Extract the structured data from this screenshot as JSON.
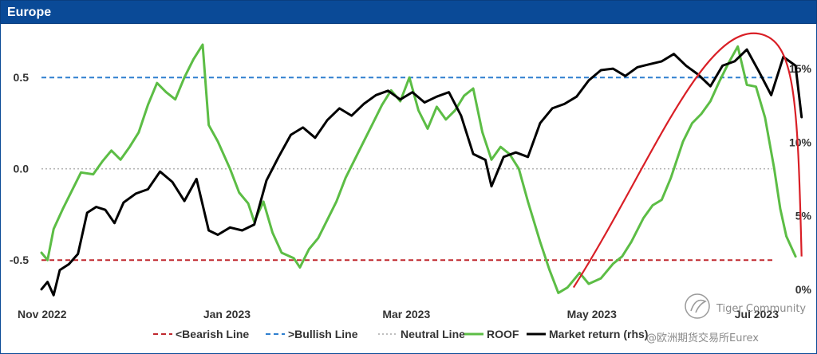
{
  "header": {
    "title": "Europe"
  },
  "colors": {
    "bearish": "#c0282e",
    "bullish": "#2e7fcf",
    "neutral": "#b5b5b5",
    "roof": "#5cbd45",
    "market": "#000000",
    "trend": "#d91f26",
    "header": "#0a4a97"
  },
  "watermark": {
    "line1": "Tiger Community",
    "line2": "@欧洲期货交易所Eurex"
  },
  "chart_data": {
    "type": "line",
    "title": "Europe",
    "x_ticks": [
      "Nov 2022",
      "Jan 2023",
      "Mar 2023",
      "May 2023",
      "Jul 2023"
    ],
    "x_tick_dates": [
      "2022-11-01",
      "2023-01-01",
      "2023-03-01",
      "2023-05-01",
      "2023-07-01"
    ],
    "x_range": [
      "2022-11-01",
      "2023-07-02"
    ],
    "y_left": {
      "ticks": [
        -0.5,
        0.0,
        0.5
      ],
      "tick_labels": [
        "-0.5",
        "0.0",
        "0.5"
      ],
      "range": [
        -0.7,
        0.75
      ]
    },
    "y_right": {
      "ticks": [
        0,
        5,
        10,
        15
      ],
      "tick_labels": [
        "0%",
        "5%",
        "10%",
        "15%"
      ],
      "range": [
        -0.5,
        17.5
      ],
      "unit": "%"
    },
    "grid": false,
    "legend_position": "bottom",
    "reference_lines": [
      {
        "name": "<Bearish Line",
        "value": -0.5,
        "axis": "left",
        "style": "dashed",
        "color_key": "bearish"
      },
      {
        "name": ">Bullish Line",
        "value": 0.5,
        "axis": "left",
        "style": "dashed",
        "color_key": "bullish"
      },
      {
        "name": "Neutral Line",
        "value": 0.0,
        "axis": "left",
        "style": "dotted",
        "color_key": "neutral"
      }
    ],
    "series": [
      {
        "name": "ROOF",
        "axis": "left",
        "color_key": "roof",
        "points": [
          [
            "2022-11-01",
            -0.46
          ],
          [
            "2022-11-03",
            -0.5
          ],
          [
            "2022-11-05",
            -0.33
          ],
          [
            "2022-11-08",
            -0.22
          ],
          [
            "2022-11-11",
            -0.12
          ],
          [
            "2022-11-14",
            -0.02
          ],
          [
            "2022-11-18",
            -0.03
          ],
          [
            "2022-11-21",
            0.04
          ],
          [
            "2022-11-24",
            0.1
          ],
          [
            "2022-11-27",
            0.05
          ],
          [
            "2022-11-30",
            0.12
          ],
          [
            "2022-12-03",
            0.2
          ],
          [
            "2022-12-06",
            0.35
          ],
          [
            "2022-12-09",
            0.47
          ],
          [
            "2022-12-12",
            0.42
          ],
          [
            "2022-12-15",
            0.38
          ],
          [
            "2022-12-18",
            0.5
          ],
          [
            "2022-12-21",
            0.6
          ],
          [
            "2022-12-24",
            0.68
          ],
          [
            "2022-12-26",
            0.24
          ],
          [
            "2022-12-29",
            0.15
          ],
          [
            "2023-01-02",
            0.0
          ],
          [
            "2023-01-05",
            -0.13
          ],
          [
            "2023-01-08",
            -0.19
          ],
          [
            "2023-01-10",
            -0.29
          ],
          [
            "2023-01-13",
            -0.18
          ],
          [
            "2023-01-16",
            -0.35
          ],
          [
            "2023-01-19",
            -0.46
          ],
          [
            "2023-01-23",
            -0.49
          ],
          [
            "2023-01-25",
            -0.54
          ],
          [
            "2023-01-28",
            -0.44
          ],
          [
            "2023-01-31",
            -0.38
          ],
          [
            "2023-02-03",
            -0.28
          ],
          [
            "2023-02-06",
            -0.18
          ],
          [
            "2023-02-09",
            -0.05
          ],
          [
            "2023-02-12",
            0.05
          ],
          [
            "2023-02-15",
            0.15
          ],
          [
            "2023-02-18",
            0.25
          ],
          [
            "2023-02-21",
            0.35
          ],
          [
            "2023-02-24",
            0.43
          ],
          [
            "2023-02-27",
            0.37
          ],
          [
            "2023-03-02",
            0.5
          ],
          [
            "2023-03-05",
            0.32
          ],
          [
            "2023-03-08",
            0.22
          ],
          [
            "2023-03-11",
            0.34
          ],
          [
            "2023-03-14",
            0.27
          ],
          [
            "2023-03-17",
            0.32
          ],
          [
            "2023-03-20",
            0.4
          ],
          [
            "2023-03-23",
            0.44
          ],
          [
            "2023-03-26",
            0.2
          ],
          [
            "2023-03-29",
            0.05
          ],
          [
            "2023-04-01",
            0.12
          ],
          [
            "2023-04-04",
            0.08
          ],
          [
            "2023-04-07",
            0.0
          ],
          [
            "2023-04-10",
            -0.18
          ],
          [
            "2023-04-14",
            -0.4
          ],
          [
            "2023-04-17",
            -0.55
          ],
          [
            "2023-04-20",
            -0.68
          ],
          [
            "2023-04-23",
            -0.65
          ],
          [
            "2023-04-27",
            -0.57
          ],
          [
            "2023-04-30",
            -0.63
          ],
          [
            "2023-05-04",
            -0.6
          ],
          [
            "2023-05-08",
            -0.52
          ],
          [
            "2023-05-11",
            -0.48
          ],
          [
            "2023-05-14",
            -0.4
          ],
          [
            "2023-05-18",
            -0.27
          ],
          [
            "2023-05-21",
            -0.2
          ],
          [
            "2023-05-24",
            -0.17
          ],
          [
            "2023-05-27",
            -0.05
          ],
          [
            "2023-05-31",
            0.15
          ],
          [
            "2023-06-03",
            0.25
          ],
          [
            "2023-06-06",
            0.3
          ],
          [
            "2023-06-09",
            0.37
          ],
          [
            "2023-06-12",
            0.48
          ],
          [
            "2023-06-15",
            0.58
          ],
          [
            "2023-06-18",
            0.67
          ],
          [
            "2023-06-21",
            0.46
          ],
          [
            "2023-06-24",
            0.45
          ],
          [
            "2023-06-27",
            0.28
          ],
          [
            "2023-06-30",
            0.0
          ],
          [
            "2023-07-02",
            -0.22
          ],
          [
            "2023-07-04",
            -0.37
          ],
          [
            "2023-07-07",
            -0.48
          ]
        ]
      },
      {
        "name": "Market return (rhs)",
        "axis": "right",
        "color_key": "market",
        "points": [
          [
            "2022-11-01",
            0.0
          ],
          [
            "2022-11-03",
            0.5
          ],
          [
            "2022-11-05",
            -0.4
          ],
          [
            "2022-11-07",
            1.3
          ],
          [
            "2022-11-10",
            1.7
          ],
          [
            "2022-11-13",
            2.4
          ],
          [
            "2022-11-16",
            5.2
          ],
          [
            "2022-11-19",
            5.6
          ],
          [
            "2022-11-22",
            5.4
          ],
          [
            "2022-11-25",
            4.5
          ],
          [
            "2022-11-28",
            5.9
          ],
          [
            "2022-12-02",
            6.5
          ],
          [
            "2022-12-06",
            6.8
          ],
          [
            "2022-12-10",
            8.0
          ],
          [
            "2022-12-14",
            7.3
          ],
          [
            "2022-12-18",
            6.0
          ],
          [
            "2022-12-22",
            7.5
          ],
          [
            "2022-12-26",
            4.0
          ],
          [
            "2022-12-29",
            3.7
          ],
          [
            "2023-01-02",
            4.2
          ],
          [
            "2023-01-06",
            4.0
          ],
          [
            "2023-01-10",
            4.4
          ],
          [
            "2023-01-14",
            7.4
          ],
          [
            "2023-01-18",
            9.0
          ],
          [
            "2023-01-22",
            10.5
          ],
          [
            "2023-01-26",
            11.0
          ],
          [
            "2023-01-30",
            10.3
          ],
          [
            "2023-02-03",
            11.5
          ],
          [
            "2023-02-07",
            12.3
          ],
          [
            "2023-02-11",
            11.8
          ],
          [
            "2023-02-15",
            12.6
          ],
          [
            "2023-02-19",
            13.2
          ],
          [
            "2023-02-23",
            13.5
          ],
          [
            "2023-02-27",
            12.9
          ],
          [
            "2023-03-03",
            13.4
          ],
          [
            "2023-03-07",
            12.7
          ],
          [
            "2023-03-11",
            13.1
          ],
          [
            "2023-03-15",
            13.4
          ],
          [
            "2023-03-19",
            11.8
          ],
          [
            "2023-03-23",
            9.2
          ],
          [
            "2023-03-27",
            8.8
          ],
          [
            "2023-03-29",
            7.0
          ],
          [
            "2023-04-02",
            9.0
          ],
          [
            "2023-04-06",
            9.3
          ],
          [
            "2023-04-10",
            9.0
          ],
          [
            "2023-04-14",
            11.3
          ],
          [
            "2023-04-18",
            12.3
          ],
          [
            "2023-04-22",
            12.6
          ],
          [
            "2023-04-26",
            13.1
          ],
          [
            "2023-04-30",
            14.2
          ],
          [
            "2023-05-04",
            14.9
          ],
          [
            "2023-05-08",
            15.0
          ],
          [
            "2023-05-12",
            14.5
          ],
          [
            "2023-05-16",
            15.1
          ],
          [
            "2023-05-20",
            15.3
          ],
          [
            "2023-05-24",
            15.5
          ],
          [
            "2023-05-28",
            16.0
          ],
          [
            "2023-06-01",
            15.2
          ],
          [
            "2023-06-05",
            14.6
          ],
          [
            "2023-06-09",
            13.8
          ],
          [
            "2023-06-13",
            15.2
          ],
          [
            "2023-06-17",
            15.5
          ],
          [
            "2023-06-21",
            16.3
          ],
          [
            "2023-06-25",
            14.8
          ],
          [
            "2023-06-29",
            13.2
          ],
          [
            "2023-07-03",
            15.8
          ],
          [
            "2023-07-07",
            15.2
          ],
          [
            "2023-07-09",
            11.7
          ]
        ]
      }
    ],
    "annotations": [
      {
        "type": "arc",
        "from": [
          "2023-04-25",
          -0.65
        ],
        "peak": [
          "2023-06-25",
          0.74
        ],
        "to": [
          "2023-07-09",
          -0.48
        ],
        "color_key": "trend"
      }
    ],
    "legend": [
      "<Bearish Line",
      ">Bullish Line",
      "Neutral Line",
      "ROOF",
      "Market return (rhs)"
    ]
  }
}
